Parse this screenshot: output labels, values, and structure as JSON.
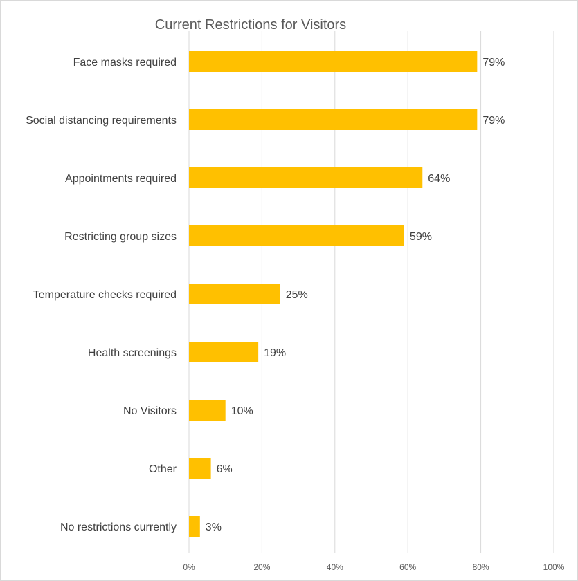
{
  "chart_data": {
    "type": "bar",
    "orientation": "horizontal",
    "title": "Current Restrictions for Visitors",
    "categories": [
      "Face masks required",
      "Social distancing requirements",
      "Appointments required",
      "Restricting group sizes",
      "Temperature checks required",
      "Health screenings",
      "No Visitors",
      "Other",
      "No restrictions currently"
    ],
    "values": [
      79,
      79,
      64,
      59,
      25,
      19,
      10,
      6,
      3
    ],
    "value_labels": [
      "79%",
      "79%",
      "64%",
      "59%",
      "25%",
      "19%",
      "10%",
      "6%",
      "3%"
    ],
    "xlim": [
      0,
      100
    ],
    "xticks": [
      "0%",
      "20%",
      "40%",
      "60%",
      "80%",
      "100%"
    ],
    "xtick_values": [
      0,
      20,
      40,
      60,
      80,
      100
    ],
    "grid": "vertical",
    "legend": "none",
    "bar_color": "#FFC000",
    "grid_color": "#d9d9d9"
  }
}
